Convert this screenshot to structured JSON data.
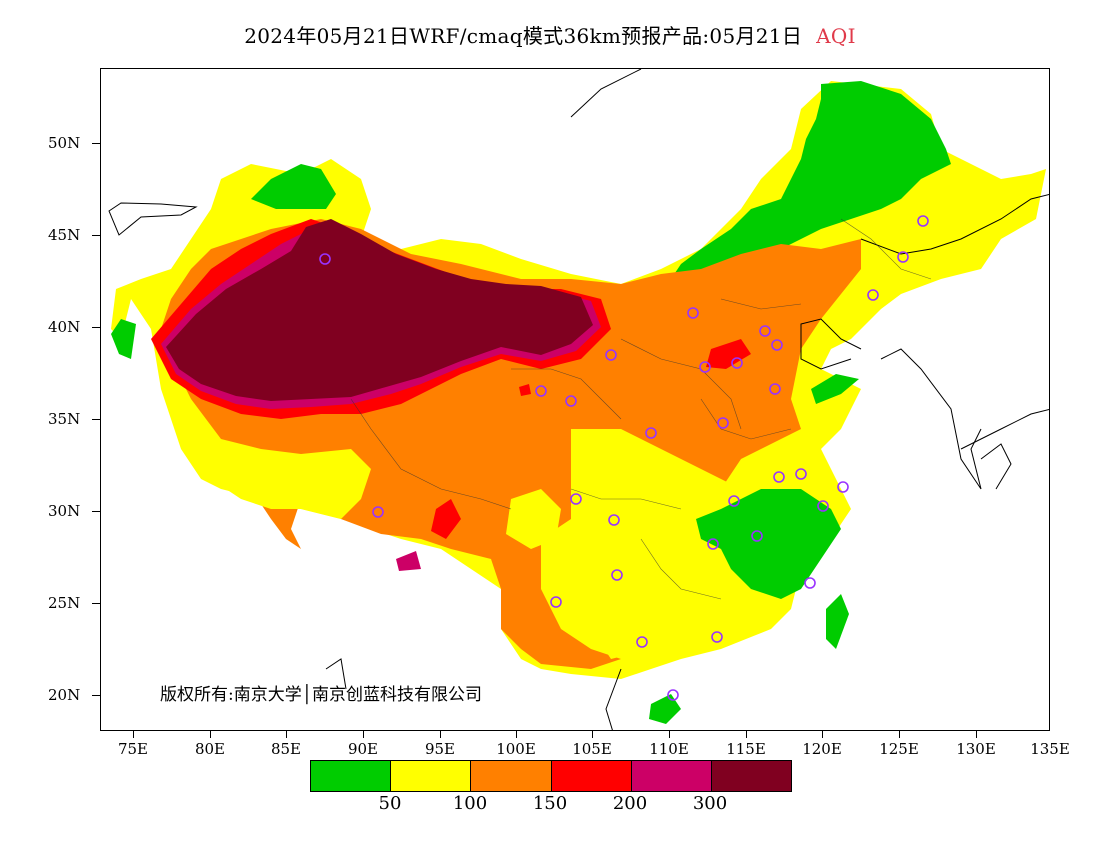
{
  "header": {
    "title": "2024年05月21日WRF/cmaq模式36km预报产品:05月21日",
    "variable": "AQI"
  },
  "map": {
    "latitude_labels": [
      "50N",
      "45N",
      "40N",
      "35N",
      "30N",
      "25N",
      "20N"
    ],
    "longitude_labels": [
      "75E",
      "80E",
      "85E",
      "90E",
      "95E",
      "100E",
      "105E",
      "110E",
      "115E",
      "120E",
      "125E",
      "130E",
      "135E"
    ],
    "copyright": "版权所有:南京大学│南京创蓝科技有限公司",
    "colors": {
      "good": "#00cc00",
      "moderate": "#ffff00",
      "sensitive": "#ff8000",
      "unhealthy": "#ff0000",
      "very_unhealthy": "#cc0066",
      "hazardous": "#800020",
      "marker": "#9933ff"
    }
  },
  "legend": {
    "breaks": [
      "50",
      "100",
      "150",
      "200",
      "300"
    ],
    "colors": [
      "#00cc00",
      "#ffff00",
      "#ff8000",
      "#ff0000",
      "#cc0066",
      "#800020"
    ]
  }
}
